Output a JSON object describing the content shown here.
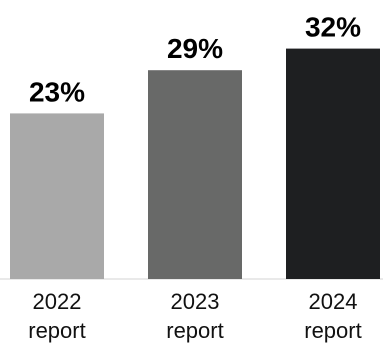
{
  "chart_data": {
    "type": "bar",
    "categories": [
      [
        "2022",
        "report"
      ],
      [
        "2023",
        "report"
      ],
      [
        "2024",
        "report"
      ]
    ],
    "values": [
      23,
      29,
      32
    ],
    "value_labels": [
      "23%",
      "29%",
      "32%"
    ],
    "colors": [
      "#a9a9a9",
      "#686968",
      "#1e1f21"
    ],
    "ylim": [
      0,
      35
    ],
    "grid": false,
    "title": "",
    "xlabel": "",
    "ylabel": ""
  }
}
